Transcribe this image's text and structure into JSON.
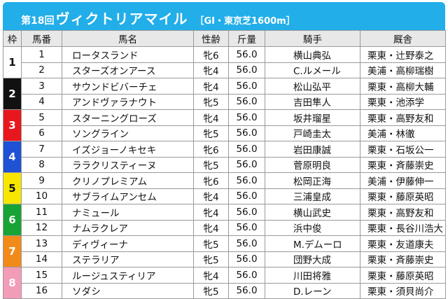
{
  "header": {
    "round": "第18回",
    "race": "ヴィクトリアマイル",
    "condition": "［GI・東京芝1600m］"
  },
  "columns": {
    "waku": "枠",
    "umaban": "馬番",
    "horse": "馬名",
    "sexage": "性齢",
    "weight": "斤量",
    "jockey": "騎手",
    "trainer": "厩舎"
  },
  "waku_colors": [
    "#ffffff",
    "#111111",
    "#e8171d",
    "#1f51d4",
    "#f6e600",
    "#18a337",
    "#f28a1a",
    "#f39cb8"
  ],
  "entries": [
    {
      "waku": "1",
      "umaban": "1",
      "horse": "ロータスランド",
      "sexage": "牝6",
      "weight": "56.0",
      "jockey": "横山典弘",
      "trainer": "栗東・辻野泰之"
    },
    {
      "waku": "1",
      "umaban": "2",
      "horse": "スターズオンアース",
      "sexage": "牝4",
      "weight": "56.0",
      "jockey": "C.ルメール",
      "trainer": "美浦・高柳瑞樹"
    },
    {
      "waku": "2",
      "umaban": "3",
      "horse": "サウンドビバーチェ",
      "sexage": "牝4",
      "weight": "56.0",
      "jockey": "松山弘平",
      "trainer": "栗東・高柳大輔"
    },
    {
      "waku": "2",
      "umaban": "4",
      "horse": "アンドヴァラナウト",
      "sexage": "牝5",
      "weight": "56.0",
      "jockey": "吉田隼人",
      "trainer": "栗東・池添学"
    },
    {
      "waku": "3",
      "umaban": "5",
      "horse": "スターニングローズ",
      "sexage": "牝4",
      "weight": "56.0",
      "jockey": "坂井瑠星",
      "trainer": "栗東・高野友和"
    },
    {
      "waku": "3",
      "umaban": "6",
      "horse": "ソングライン",
      "sexage": "牝5",
      "weight": "56.0",
      "jockey": "戸崎圭太",
      "trainer": "美浦・林徹"
    },
    {
      "waku": "4",
      "umaban": "7",
      "horse": "イズジョーノキセキ",
      "sexage": "牝6",
      "weight": "56.0",
      "jockey": "岩田康誠",
      "trainer": "栗東・石坂公一"
    },
    {
      "waku": "4",
      "umaban": "8",
      "horse": "ララクリスティーヌ",
      "sexage": "牝5",
      "weight": "56.0",
      "jockey": "菅原明良",
      "trainer": "栗東・斉藤崇史"
    },
    {
      "waku": "5",
      "umaban": "9",
      "horse": "クリノプレミアム",
      "sexage": "牝6",
      "weight": "56.0",
      "jockey": "松岡正海",
      "trainer": "美浦・伊藤伸一"
    },
    {
      "waku": "5",
      "umaban": "10",
      "horse": "サブライムアンセム",
      "sexage": "牝4",
      "weight": "56.0",
      "jockey": "三浦皇成",
      "trainer": "栗東・藤原英昭"
    },
    {
      "waku": "6",
      "umaban": "11",
      "horse": "ナミュール",
      "sexage": "牝4",
      "weight": "56.0",
      "jockey": "横山武史",
      "trainer": "栗東・高野友和"
    },
    {
      "waku": "6",
      "umaban": "12",
      "horse": "ナムラクレア",
      "sexage": "牝4",
      "weight": "56.0",
      "jockey": "浜中俊",
      "trainer": "栗東・長谷川浩大"
    },
    {
      "waku": "7",
      "umaban": "13",
      "horse": "ディヴィーナ",
      "sexage": "牝5",
      "weight": "56.0",
      "jockey": "M.デムーロ",
      "trainer": "栗東・友道康夫"
    },
    {
      "waku": "7",
      "umaban": "14",
      "horse": "ステラリア",
      "sexage": "牝5",
      "weight": "56.0",
      "jockey": "団野大成",
      "trainer": "栗東・斉藤崇史"
    },
    {
      "waku": "8",
      "umaban": "15",
      "horse": "ルージュスティリア",
      "sexage": "牝4",
      "weight": "56.0",
      "jockey": "川田将雅",
      "trainer": "栗東・藤原英昭"
    },
    {
      "waku": "8",
      "umaban": "16",
      "horse": "ソダシ",
      "sexage": "牝5",
      "weight": "56.0",
      "jockey": "D.レーン",
      "trainer": "栗東・須貝尚介"
    }
  ]
}
